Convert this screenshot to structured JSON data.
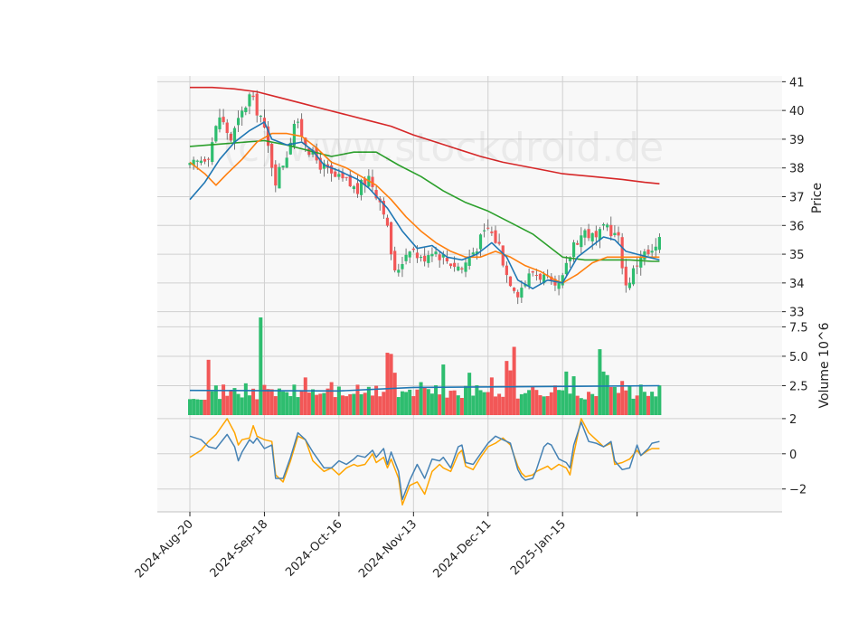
{
  "chart_data": {
    "type": "candlestick",
    "watermark": "(c) www.stockdroid.de",
    "colors": {
      "up": "#2ebd6f",
      "down": "#f25757",
      "wick": "#555555",
      "ma_short": "#1f77b4",
      "ma_mid": "#ff7f0e",
      "ma_long": "#2ca02c",
      "ma_200": "#d62728",
      "volume_ma": "#1f77b4",
      "osc_a": "#4682b4",
      "osc_b": "#ffa500",
      "grid": "#d0d0d0",
      "panel_bg": "#f8f8f8"
    },
    "x_ticks": [
      {
        "label": "2024-Aug-20",
        "index": 0
      },
      {
        "label": "2024-Sep-18",
        "index": 20
      },
      {
        "label": "2024-Oct-16",
        "index": 40
      },
      {
        "label": "2024-Nov-13",
        "index": 60
      },
      {
        "label": "2024-Dec-11",
        "index": 80
      },
      {
        "label": "2025-Jan-15",
        "index": 100
      },
      {
        "label": "",
        "index": 120
      }
    ],
    "price_panel": {
      "ylabel": "Price",
      "ylim": [
        32.8,
        41.2
      ],
      "yticks": [
        33,
        34,
        35,
        36,
        37,
        38,
        39,
        40,
        41
      ],
      "anchors": [
        [
          0,
          38.0
        ],
        [
          5,
          38.5
        ],
        [
          8,
          39.8
        ],
        [
          11,
          39.0
        ],
        [
          16,
          40.5
        ],
        [
          19,
          39.8
        ],
        [
          23,
          37.6
        ],
        [
          26,
          38.5
        ],
        [
          28,
          39.6
        ],
        [
          30,
          39.2
        ],
        [
          33,
          38.4
        ],
        [
          36,
          38.0
        ],
        [
          38,
          37.7
        ],
        [
          42,
          37.5
        ],
        [
          45,
          37.2
        ],
        [
          48,
          37.7
        ],
        [
          52,
          36.6
        ],
        [
          55,
          34.3
        ],
        [
          59,
          35.3
        ],
        [
          62,
          34.8
        ],
        [
          65,
          35.2
        ],
        [
          69,
          34.8
        ],
        [
          73,
          34.5
        ],
        [
          77,
          35.3
        ],
        [
          80,
          35.9
        ],
        [
          83,
          35.3
        ],
        [
          85,
          34.3
        ],
        [
          88,
          33.7
        ],
        [
          92,
          34.4
        ],
        [
          95,
          34.2
        ],
        [
          98,
          33.7
        ],
        [
          100,
          34.1
        ],
        [
          103,
          35.4
        ],
        [
          106,
          35.8
        ],
        [
          109,
          35.5
        ],
        [
          112,
          36.0
        ],
        [
          115,
          35.5
        ],
        [
          117,
          33.9
        ],
        [
          119,
          34.4
        ],
        [
          121,
          35.0
        ],
        [
          124,
          35.0
        ],
        [
          126,
          35.4
        ]
      ],
      "ma_short": [
        [
          0,
          36.9
        ],
        [
          4,
          37.5
        ],
        [
          8,
          38.3
        ],
        [
          12,
          38.9
        ],
        [
          16,
          39.3
        ],
        [
          20,
          39.6
        ],
        [
          22,
          39.0
        ],
        [
          26,
          38.8
        ],
        [
          30,
          38.9
        ],
        [
          33,
          38.6
        ],
        [
          36,
          38.1
        ],
        [
          40,
          37.9
        ],
        [
          45,
          37.6
        ],
        [
          48,
          37.3
        ],
        [
          53,
          36.6
        ],
        [
          57,
          35.8
        ],
        [
          61,
          35.2
        ],
        [
          65,
          35.3
        ],
        [
          69,
          34.9
        ],
        [
          73,
          34.8
        ],
        [
          77,
          35.0
        ],
        [
          81,
          35.4
        ],
        [
          85,
          34.9
        ],
        [
          88,
          34.1
        ],
        [
          92,
          33.8
        ],
        [
          96,
          34.1
        ],
        [
          100,
          34.0
        ],
        [
          104,
          34.9
        ],
        [
          108,
          35.3
        ],
        [
          111,
          35.6
        ],
        [
          114,
          35.5
        ],
        [
          117,
          35.1
        ],
        [
          120,
          35.0
        ],
        [
          123,
          34.9
        ],
        [
          126,
          34.8
        ]
      ],
      "ma_mid": [
        [
          0,
          38.2
        ],
        [
          4,
          37.8
        ],
        [
          7,
          37.4
        ],
        [
          10,
          37.8
        ],
        [
          14,
          38.3
        ],
        [
          18,
          38.9
        ],
        [
          22,
          39.2
        ],
        [
          26,
          39.2
        ],
        [
          30,
          39.1
        ],
        [
          34,
          38.7
        ],
        [
          38,
          38.2
        ],
        [
          42,
          38.0
        ],
        [
          46,
          37.7
        ],
        [
          50,
          37.4
        ],
        [
          54,
          36.9
        ],
        [
          58,
          36.3
        ],
        [
          62,
          35.8
        ],
        [
          66,
          35.4
        ],
        [
          70,
          35.1
        ],
        [
          74,
          34.9
        ],
        [
          78,
          34.9
        ],
        [
          82,
          35.1
        ],
        [
          86,
          34.9
        ],
        [
          90,
          34.6
        ],
        [
          94,
          34.4
        ],
        [
          98,
          34.1
        ],
        [
          100,
          34.0
        ],
        [
          104,
          34.3
        ],
        [
          108,
          34.7
        ],
        [
          112,
          34.9
        ],
        [
          116,
          34.9
        ],
        [
          120,
          34.9
        ],
        [
          124,
          34.9
        ],
        [
          126,
          34.9
        ]
      ],
      "ma_long": [
        [
          0,
          38.75
        ],
        [
          10,
          38.85
        ],
        [
          20,
          38.95
        ],
        [
          26,
          38.8
        ],
        [
          32,
          38.6
        ],
        [
          38,
          38.4
        ],
        [
          44,
          38.55
        ],
        [
          50,
          38.55
        ],
        [
          56,
          38.1
        ],
        [
          62,
          37.7
        ],
        [
          68,
          37.2
        ],
        [
          74,
          36.8
        ],
        [
          80,
          36.5
        ],
        [
          86,
          36.1
        ],
        [
          92,
          35.7
        ],
        [
          96,
          35.3
        ],
        [
          100,
          34.9
        ],
        [
          106,
          34.8
        ],
        [
          112,
          34.8
        ],
        [
          118,
          34.8
        ],
        [
          124,
          34.75
        ],
        [
          126,
          34.75
        ]
      ],
      "ma_200": [
        [
          0,
          40.8
        ],
        [
          6,
          40.8
        ],
        [
          12,
          40.75
        ],
        [
          18,
          40.65
        ],
        [
          24,
          40.45
        ],
        [
          30,
          40.25
        ],
        [
          36,
          40.05
        ],
        [
          42,
          39.85
        ],
        [
          48,
          39.65
        ],
        [
          54,
          39.45
        ],
        [
          60,
          39.15
        ],
        [
          66,
          38.9
        ],
        [
          72,
          38.65
        ],
        [
          78,
          38.4
        ],
        [
          84,
          38.2
        ],
        [
          90,
          38.05
        ],
        [
          96,
          37.9
        ],
        [
          100,
          37.8
        ],
        [
          108,
          37.7
        ],
        [
          116,
          37.6
        ],
        [
          122,
          37.5
        ],
        [
          126,
          37.45
        ]
      ]
    },
    "volume_panel": {
      "ylabel": "Volume  10^6",
      "ylim": [
        0,
        8.3
      ],
      "yticks": [
        2.5,
        5.0,
        7.5
      ],
      "ytick_labels": [
        "2.5",
        "5.0",
        "7.5"
      ],
      "ma_start": 2.1,
      "ma_end": 2.5
    },
    "oscillator_panel": {
      "ylim": [
        -3.3,
        2.2
      ],
      "yticks": [
        -2,
        0,
        2
      ],
      "ytick_labels": [
        "−2",
        "0",
        "2"
      ],
      "series_a": [
        [
          0,
          1.0
        ],
        [
          3,
          0.8
        ],
        [
          5,
          0.4
        ],
        [
          7,
          0.3
        ],
        [
          10,
          1.1
        ],
        [
          12,
          0.4
        ],
        [
          13,
          -0.4
        ],
        [
          14,
          0.1
        ],
        [
          16,
          0.8
        ],
        [
          17,
          0.6
        ],
        [
          18,
          0.9
        ],
        [
          20,
          0.3
        ],
        [
          22,
          0.5
        ],
        [
          23,
          -1.4
        ],
        [
          25,
          -1.4
        ],
        [
          27,
          -0.2
        ],
        [
          29,
          1.2
        ],
        [
          31,
          0.8
        ],
        [
          33,
          0.1
        ],
        [
          36,
          -0.8
        ],
        [
          38,
          -0.8
        ],
        [
          40,
          -0.4
        ],
        [
          42,
          -0.6
        ],
        [
          44,
          -0.3
        ],
        [
          45,
          -0.1
        ],
        [
          47,
          -0.2
        ],
        [
          49,
          0.2
        ],
        [
          50,
          -0.2
        ],
        [
          52,
          0.3
        ],
        [
          53,
          -0.6
        ],
        [
          54,
          0.1
        ],
        [
          56,
          -1.0
        ],
        [
          57,
          -2.6
        ],
        [
          59,
          -1.5
        ],
        [
          61,
          -0.6
        ],
        [
          63,
          -1.4
        ],
        [
          65,
          -0.3
        ],
        [
          67,
          -0.4
        ],
        [
          68,
          -0.2
        ],
        [
          70,
          -0.8
        ],
        [
          72,
          0.4
        ],
        [
          73,
          0.5
        ],
        [
          74,
          -0.5
        ],
        [
          76,
          -0.6
        ],
        [
          78,
          0.0
        ],
        [
          80,
          0.6
        ],
        [
          82,
          1.0
        ],
        [
          84,
          0.8
        ],
        [
          86,
          0.6
        ],
        [
          88,
          -0.9
        ],
        [
          89,
          -1.3
        ],
        [
          90,
          -1.5
        ],
        [
          92,
          -1.4
        ],
        [
          93,
          -0.9
        ],
        [
          95,
          0.4
        ],
        [
          96,
          0.6
        ],
        [
          97,
          0.5
        ],
        [
          99,
          -0.3
        ],
        [
          101,
          -0.5
        ],
        [
          102,
          -0.8
        ],
        [
          103,
          0.5
        ],
        [
          105,
          1.8
        ],
        [
          107,
          0.7
        ],
        [
          109,
          0.6
        ],
        [
          111,
          0.4
        ],
        [
          113,
          0.7
        ],
        [
          114,
          -0.4
        ],
        [
          116,
          -0.9
        ],
        [
          118,
          -0.8
        ],
        [
          120,
          0.5
        ],
        [
          121,
          -0.1
        ],
        [
          123,
          0.3
        ],
        [
          124,
          0.6
        ],
        [
          126,
          0.7
        ]
      ],
      "series_b": [
        [
          0,
          -0.2
        ],
        [
          3,
          0.2
        ],
        [
          5,
          0.7
        ],
        [
          7,
          1.1
        ],
        [
          10,
          2.0
        ],
        [
          12,
          1.2
        ],
        [
          13,
          0.5
        ],
        [
          14,
          0.8
        ],
        [
          16,
          0.9
        ],
        [
          17,
          1.6
        ],
        [
          18,
          1.0
        ],
        [
          20,
          0.8
        ],
        [
          22,
          0.7
        ],
        [
          23,
          -1.2
        ],
        [
          25,
          -1.6
        ],
        [
          27,
          -0.4
        ],
        [
          29,
          1.0
        ],
        [
          31,
          0.8
        ],
        [
          33,
          -0.4
        ],
        [
          36,
          -1.0
        ],
        [
          38,
          -0.8
        ],
        [
          40,
          -1.2
        ],
        [
          42,
          -0.8
        ],
        [
          44,
          -0.6
        ],
        [
          45,
          -0.7
        ],
        [
          47,
          -0.6
        ],
        [
          49,
          0.0
        ],
        [
          50,
          -0.5
        ],
        [
          52,
          -0.2
        ],
        [
          53,
          -0.8
        ],
        [
          54,
          -0.3
        ],
        [
          56,
          -1.4
        ],
        [
          57,
          -2.9
        ],
        [
          59,
          -1.8
        ],
        [
          61,
          -1.6
        ],
        [
          63,
          -2.3
        ],
        [
          65,
          -1.0
        ],
        [
          67,
          -0.6
        ],
        [
          68,
          -0.8
        ],
        [
          70,
          -1.0
        ],
        [
          72,
          0.0
        ],
        [
          73,
          0.2
        ],
        [
          74,
          -0.7
        ],
        [
          76,
          -0.9
        ],
        [
          78,
          -0.2
        ],
        [
          80,
          0.4
        ],
        [
          82,
          0.6
        ],
        [
          84,
          0.9
        ],
        [
          86,
          0.5
        ],
        [
          88,
          -0.7
        ],
        [
          89,
          -1.1
        ],
        [
          90,
          -1.3
        ],
        [
          92,
          -1.2
        ],
        [
          93,
          -1.0
        ],
        [
          95,
          -0.8
        ],
        [
          96,
          -0.7
        ],
        [
          97,
          -0.9
        ],
        [
          99,
          -0.6
        ],
        [
          101,
          -0.8
        ],
        [
          102,
          -1.2
        ],
        [
          103,
          0.0
        ],
        [
          105,
          2.0
        ],
        [
          107,
          1.2
        ],
        [
          109,
          0.8
        ],
        [
          111,
          0.4
        ],
        [
          113,
          0.6
        ],
        [
          114,
          -0.6
        ],
        [
          116,
          -0.5
        ],
        [
          118,
          -0.3
        ],
        [
          120,
          0.2
        ],
        [
          121,
          -0.1
        ],
        [
          123,
          0.2
        ],
        [
          124,
          0.3
        ],
        [
          126,
          0.3
        ]
      ]
    },
    "candle_count": 127,
    "grid": true
  }
}
